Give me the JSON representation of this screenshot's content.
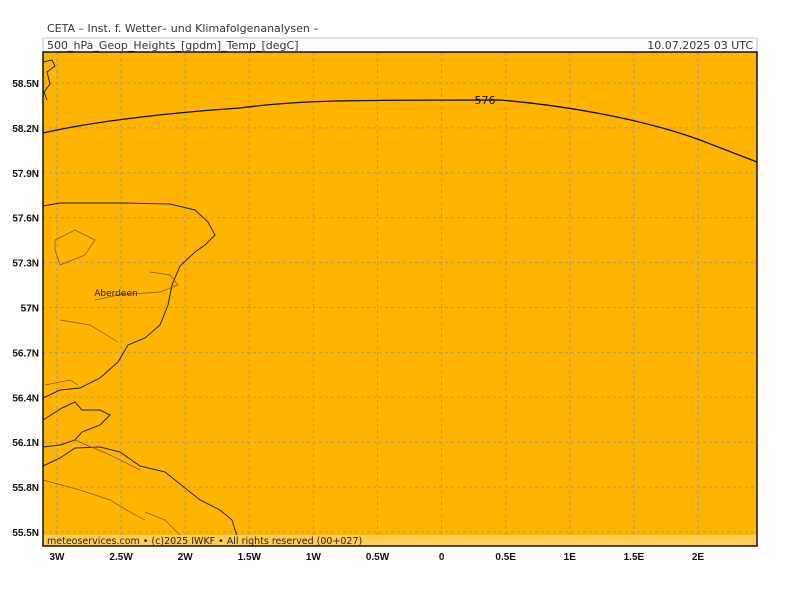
{
  "header": {
    "title": "CETA – Inst. f. Wetter– und Klimafolgenanalysen –",
    "field": "500_hPa_Geop_Heights_[gpdm]_Temp_[degC]",
    "valid_time": "10.07.2025 03 UTC"
  },
  "map": {
    "lat_labels": [
      "58.5N",
      "58.2N",
      "57.9N",
      "57.6N",
      "57.3N",
      "57N",
      "56.7N",
      "56.4N",
      "56.1N",
      "55.8N",
      "55.5N"
    ],
    "lon_labels": [
      "3W",
      "2.5W",
      "2W",
      "1.5W",
      "1W",
      "0.5W",
      "0",
      "0.5E",
      "1E",
      "1.5E",
      "2E"
    ],
    "contour_label": "576",
    "city": "Aberdeen"
  },
  "footer": "meteoservices.com • (c)2025 IWKF • All rights reserved (00+027)"
}
